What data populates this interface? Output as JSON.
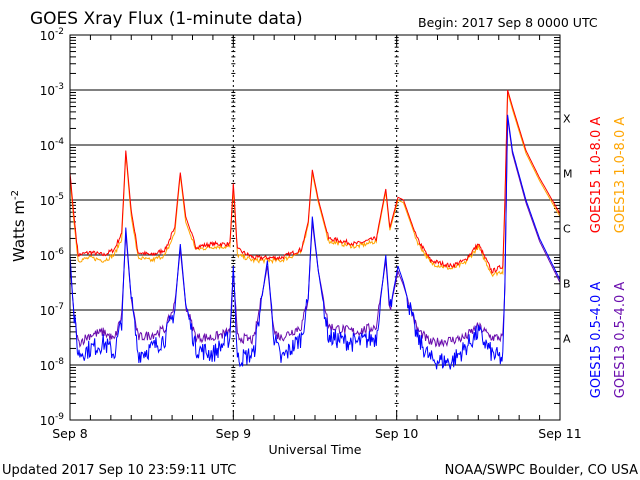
{
  "chart_data": {
    "type": "line",
    "title": "GOES Xray Flux (1-minute data)",
    "begin_label": "Begin:  2017 Sep 8 0000 UTC",
    "xlabel": "Universal Time",
    "ylabel": "Watts m",
    "ylabel_sup": "-2",
    "x_unit": "hours since 2017 Sep 8 0000 UTC",
    "xlim": [
      0,
      72
    ],
    "ylim_log10": [
      -9,
      -2
    ],
    "y_scale": "log",
    "x_ticks": [
      {
        "h": 0,
        "label": "Sep 8"
      },
      {
        "h": 24,
        "label": "Sep 9"
      },
      {
        "h": 48,
        "label": "Sep 10"
      },
      {
        "h": 72,
        "label": "Sep 11"
      }
    ],
    "y_ticks": [
      {
        "exp": -2,
        "label": "10",
        "sup": "-2"
      },
      {
        "exp": -3,
        "label": "10",
        "sup": "-3"
      },
      {
        "exp": -4,
        "label": "10",
        "sup": "-4"
      },
      {
        "exp": -5,
        "label": "10",
        "sup": "-5"
      },
      {
        "exp": -6,
        "label": "10",
        "sup": "-6"
      },
      {
        "exp": -7,
        "label": "10",
        "sup": "-7"
      },
      {
        "exp": -8,
        "label": "10",
        "sup": "-8"
      },
      {
        "exp": -9,
        "label": "10",
        "sup": "-9"
      }
    ],
    "gridlines_log10": [
      -3,
      -4,
      -5,
      -6,
      -7,
      -8
    ],
    "flare_classes": [
      {
        "label": "X",
        "log10": -3.5
      },
      {
        "label": "M",
        "log10": -4.5
      },
      {
        "label": "C",
        "log10": -5.5
      },
      {
        "label": "B",
        "log10": -6.5
      },
      {
        "label": "A",
        "log10": -7.5
      }
    ],
    "series": [
      {
        "name": "GOES15 1.0-8.0 A",
        "color": "#ff0000",
        "points": [
          [
            0,
            -4.5
          ],
          [
            0.5,
            -5.2
          ],
          [
            1.2,
            -6.0
          ],
          [
            3,
            -5.95
          ],
          [
            5,
            -6.0
          ],
          [
            6.5,
            -5.9
          ],
          [
            7.6,
            -5.6
          ],
          [
            8.2,
            -4.1
          ],
          [
            9,
            -5.2
          ],
          [
            10,
            -5.95
          ],
          [
            12,
            -6.0
          ],
          [
            14,
            -5.9
          ],
          [
            15.4,
            -5.5
          ],
          [
            16.2,
            -4.5
          ],
          [
            17,
            -5.3
          ],
          [
            18.5,
            -5.85
          ],
          [
            21,
            -5.8
          ],
          [
            23.5,
            -5.8
          ],
          [
            24,
            -4.7
          ],
          [
            24.6,
            -5.9
          ],
          [
            27,
            -6.05
          ],
          [
            31,
            -6.05
          ],
          [
            34,
            -5.9
          ],
          [
            35,
            -5.4
          ],
          [
            35.6,
            -4.45
          ],
          [
            36.5,
            -5.0
          ],
          [
            38,
            -5.7
          ],
          [
            42,
            -5.8
          ],
          [
            45,
            -5.7
          ],
          [
            46.4,
            -4.8
          ],
          [
            47,
            -5.5
          ],
          [
            48.2,
            -4.95
          ],
          [
            49,
            -5.0
          ],
          [
            51,
            -5.7
          ],
          [
            53,
            -6.1
          ],
          [
            56,
            -6.2
          ],
          [
            58,
            -6.1
          ],
          [
            60,
            -5.8
          ],
          [
            62,
            -6.3
          ],
          [
            63.6,
            -6.2
          ],
          [
            63.9,
            -5.0
          ],
          [
            64.3,
            -3.0
          ],
          [
            65,
            -3.3
          ],
          [
            67,
            -4.1
          ],
          [
            69,
            -4.6
          ],
          [
            72,
            -5.25
          ]
        ]
      },
      {
        "name": "GOES13 1.0-8.0 A",
        "color": "#ffa500",
        "points": [
          [
            0,
            -4.6
          ],
          [
            0.5,
            -5.3
          ],
          [
            1.2,
            -6.1
          ],
          [
            3,
            -6.05
          ],
          [
            5,
            -6.1
          ],
          [
            6.5,
            -6.0
          ],
          [
            7.6,
            -5.7
          ],
          [
            8.2,
            -4.15
          ],
          [
            9,
            -5.3
          ],
          [
            10,
            -6.05
          ],
          [
            12,
            -6.1
          ],
          [
            14,
            -6.0
          ],
          [
            15.4,
            -5.6
          ],
          [
            16.2,
            -4.55
          ],
          [
            17,
            -5.4
          ],
          [
            18.5,
            -5.9
          ],
          [
            21,
            -5.85
          ],
          [
            23.5,
            -5.85
          ],
          [
            24,
            -4.8
          ],
          [
            24.6,
            -6.0
          ],
          [
            27,
            -6.1
          ],
          [
            31,
            -6.1
          ],
          [
            34,
            -5.95
          ],
          [
            35,
            -5.45
          ],
          [
            35.6,
            -4.5
          ],
          [
            36.5,
            -5.05
          ],
          [
            38,
            -5.75
          ],
          [
            42,
            -5.85
          ],
          [
            45,
            -5.75
          ],
          [
            46.4,
            -4.85
          ],
          [
            47,
            -5.55
          ],
          [
            48.2,
            -5.0
          ],
          [
            49,
            -5.05
          ],
          [
            51,
            -5.75
          ],
          [
            53,
            -6.15
          ],
          [
            56,
            -6.25
          ],
          [
            58,
            -6.15
          ],
          [
            60,
            -5.85
          ],
          [
            62,
            -6.35
          ],
          [
            63.6,
            -6.3
          ],
          [
            63.9,
            -5.1
          ],
          [
            64.3,
            -3.05
          ],
          [
            65,
            -3.35
          ],
          [
            67,
            -4.15
          ],
          [
            69,
            -4.65
          ],
          [
            72,
            -5.3
          ]
        ]
      },
      {
        "name": "GOES15 0.5-4.0 A",
        "color": "#0000ff",
        "points": [
          [
            0,
            -6.0
          ],
          [
            0.5,
            -7.0
          ],
          [
            1.2,
            -7.8
          ],
          [
            3,
            -7.7
          ],
          [
            5,
            -7.6
          ],
          [
            6.5,
            -7.8
          ],
          [
            7.6,
            -7.2
          ],
          [
            8.2,
            -5.5
          ],
          [
            9,
            -6.8
          ],
          [
            10,
            -7.8
          ],
          [
            12,
            -7.7
          ],
          [
            14,
            -7.5
          ],
          [
            15.4,
            -7.0
          ],
          [
            16.2,
            -5.8
          ],
          [
            17,
            -6.9
          ],
          [
            18.5,
            -7.7
          ],
          [
            21,
            -7.8
          ],
          [
            23.5,
            -7.5
          ],
          [
            24,
            -6.2
          ],
          [
            24.6,
            -7.9
          ],
          [
            27,
            -7.8
          ],
          [
            29,
            -6.1
          ],
          [
            30,
            -7.5
          ],
          [
            31,
            -7.9
          ],
          [
            34,
            -7.5
          ],
          [
            35,
            -6.8
          ],
          [
            35.6,
            -5.3
          ],
          [
            36.5,
            -6.3
          ],
          [
            38,
            -7.5
          ],
          [
            42,
            -7.6
          ],
          [
            45,
            -7.5
          ],
          [
            46.4,
            -6.0
          ],
          [
            47,
            -7.0
          ],
          [
            48.2,
            -6.2
          ],
          [
            49,
            -6.5
          ],
          [
            51,
            -7.5
          ],
          [
            53,
            -7.9
          ],
          [
            56,
            -7.95
          ],
          [
            58,
            -7.7
          ],
          [
            60,
            -7.4
          ],
          [
            62,
            -7.8
          ],
          [
            63.6,
            -7.9
          ],
          [
            63.9,
            -6.5
          ],
          [
            64.3,
            -3.45
          ],
          [
            65,
            -4.1
          ],
          [
            67,
            -5.0
          ],
          [
            69,
            -5.7
          ],
          [
            72,
            -6.45
          ]
        ]
      },
      {
        "name": "GOES13 0.5-4.0 A",
        "color": "#6a0dad",
        "points": [
          [
            0,
            -6.1
          ],
          [
            0.5,
            -7.0
          ],
          [
            1.2,
            -7.6
          ],
          [
            3,
            -7.45
          ],
          [
            5,
            -7.4
          ],
          [
            6.5,
            -7.55
          ],
          [
            7.6,
            -7.1
          ],
          [
            8.2,
            -5.6
          ],
          [
            9,
            -6.8
          ],
          [
            10,
            -7.5
          ],
          [
            12,
            -7.45
          ],
          [
            14,
            -7.35
          ],
          [
            15.4,
            -6.9
          ],
          [
            16.2,
            -5.9
          ],
          [
            17,
            -6.9
          ],
          [
            18.5,
            -7.5
          ],
          [
            21,
            -7.5
          ],
          [
            23.5,
            -7.4
          ],
          [
            24,
            -6.3
          ],
          [
            24.6,
            -7.5
          ],
          [
            27,
            -7.55
          ],
          [
            29,
            -6.2
          ],
          [
            30,
            -7.4
          ],
          [
            31,
            -7.5
          ],
          [
            34,
            -7.3
          ],
          [
            35,
            -6.8
          ],
          [
            35.6,
            -5.4
          ],
          [
            36.5,
            -6.3
          ],
          [
            38,
            -7.3
          ],
          [
            42,
            -7.4
          ],
          [
            45,
            -7.3
          ],
          [
            46.4,
            -6.1
          ],
          [
            47,
            -7.0
          ],
          [
            48.2,
            -6.3
          ],
          [
            49,
            -6.55
          ],
          [
            51,
            -7.35
          ],
          [
            53,
            -7.6
          ],
          [
            56,
            -7.55
          ],
          [
            58,
            -7.5
          ],
          [
            60,
            -7.3
          ],
          [
            62,
            -7.5
          ],
          [
            63.6,
            -7.5
          ],
          [
            63.9,
            -6.6
          ],
          [
            64.3,
            -3.5
          ],
          [
            65,
            -4.15
          ],
          [
            67,
            -5.05
          ],
          [
            69,
            -5.75
          ],
          [
            72,
            -6.5
          ]
        ]
      }
    ]
  },
  "footer": {
    "updated": "Updated 2017 Sep 10 23:59:11 UTC",
    "credit": "NOAA/SWPC Boulder, CO USA"
  }
}
